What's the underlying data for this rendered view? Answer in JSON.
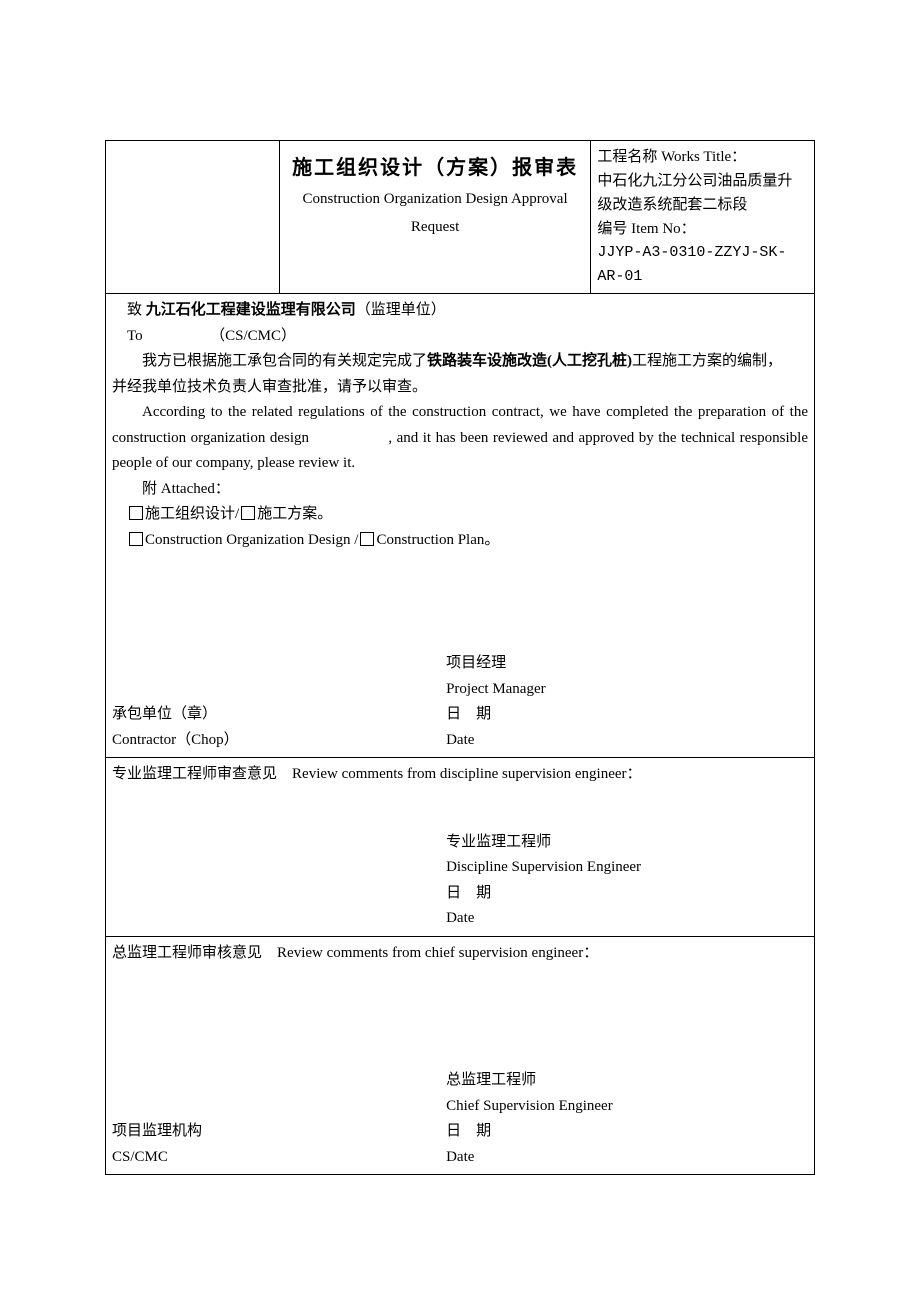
{
  "header": {
    "title_cn": "施工组织设计（方案）报审表",
    "title_en_l1": "Construction Organization Design Approval",
    "title_en_l2": "Request",
    "works_title_label": "工程名称 Works Title：",
    "works_title_value_l1": "中石化九江分公司油品质量升",
    "works_title_value_l2": "级改造系统配套二标段",
    "item_no_label": "编号 Item No：",
    "item_no_value": "JJYP-A3-0310-ZZYJ-SK-AR-01"
  },
  "body": {
    "to_cn_prefix": "致",
    "to_cn_company": "九江石化工程建设监理有限公司",
    "to_cn_suffix": "（监理单位）",
    "to_en_prefix": "To",
    "to_en_suffix": "（CS/CMC）",
    "para_cn_p1": "我方已根据施工承包合同的有关规定完成了",
    "para_cn_bold": "铁路装车设施改造(人工挖孔桩)",
    "para_cn_p2": "工程施工方案的编制，",
    "para_cn_p3": "并经我单位技术负责人审查批准，请予以审查。",
    "para_en": "According to the related regulations of the construction contract, we have completed the preparation of the construction organization design　　　　　, and it has been reviewed and approved by the technical responsible people of our company, please review it.",
    "attached_label": "附 Attached：",
    "cb1_label1": "施工组织设计/",
    "cb1_label2": "施工方案。",
    "cb2_label1": "Construction Organization Design /",
    "cb2_label2": "Construction Plan。",
    "pm_cn": "项目经理",
    "pm_en": "Project Manager",
    "contractor_cn": "承包单位（章）",
    "contractor_en": "Contractor（Chop）",
    "date_cn": "日　期",
    "date_en": "Date"
  },
  "review1": {
    "title_cn": "专业监理工程师审查意见",
    "title_en": "Review comments from discipline supervision engineer：",
    "role_cn": "专业监理工程师",
    "role_en": "Discipline Supervision Engineer",
    "date_cn": "日　期",
    "date_en": "Date"
  },
  "review2": {
    "title_cn": "总监理工程师审核意见",
    "title_en": "Review comments from chief supervision engineer：",
    "role_cn": "总监理工程师",
    "role_en": "Chief Supervision Engineer",
    "org_cn": "项目监理机构",
    "org_en": "CS/CMC",
    "date_cn": "日　期",
    "date_en": "Date"
  },
  "style": {
    "background": "#ffffff",
    "text_color": "#000000",
    "border_color": "#000000",
    "font_cn": "SimSun",
    "font_en": "Times New Roman",
    "title_fontsize": 20,
    "body_fontsize": 15
  }
}
